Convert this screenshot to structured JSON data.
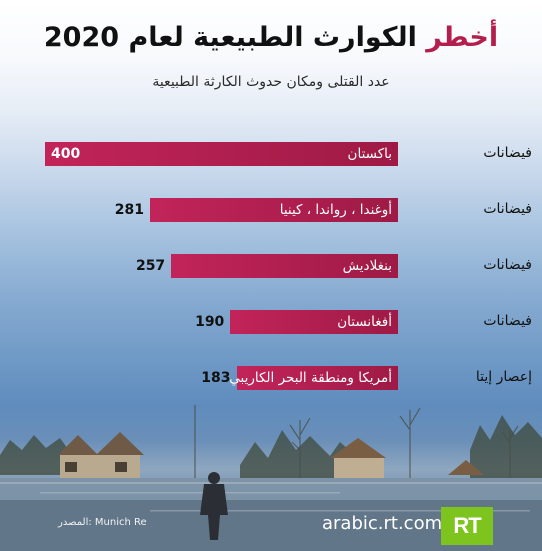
{
  "title": {
    "accent": "أخطر",
    "rest": "الكوارث الطبيعية لعام 2020"
  },
  "subtitle": "عدد القتلى ومكان حدوث الكارثة الطبيعية",
  "source_label": "المصدر: Munich Re",
  "site": "arabic.rt.com",
  "logo_text": "RT",
  "colors": {
    "bar": "#b41e4c",
    "accent_text": "#b41e4c",
    "logo_bg": "#7ec41e"
  },
  "chart_data": {
    "type": "bar",
    "orientation": "horizontal",
    "title": "أخطر الكوارث الطبيعية لعام 2020",
    "subtitle": "عدد القتلى ومكان حدوث الكارثة الطبيعية",
    "categories": [
      "فيضانات",
      "فيضانات",
      "فيضانات",
      "فيضانات",
      "إعصار إيتا"
    ],
    "locations": [
      "باكستان",
      "أوغندا ، رواندا ، كينيا",
      "بنغلاديش",
      "أفغانستان",
      "أمريكا ومنطقة البحر الكاريبي"
    ],
    "values": [
      400,
      281,
      257,
      190,
      183
    ],
    "value_labels": [
      "400",
      "281",
      "257",
      "190",
      "183"
    ],
    "xlim": [
      0,
      400
    ],
    "grid": false,
    "legend": "none"
  }
}
